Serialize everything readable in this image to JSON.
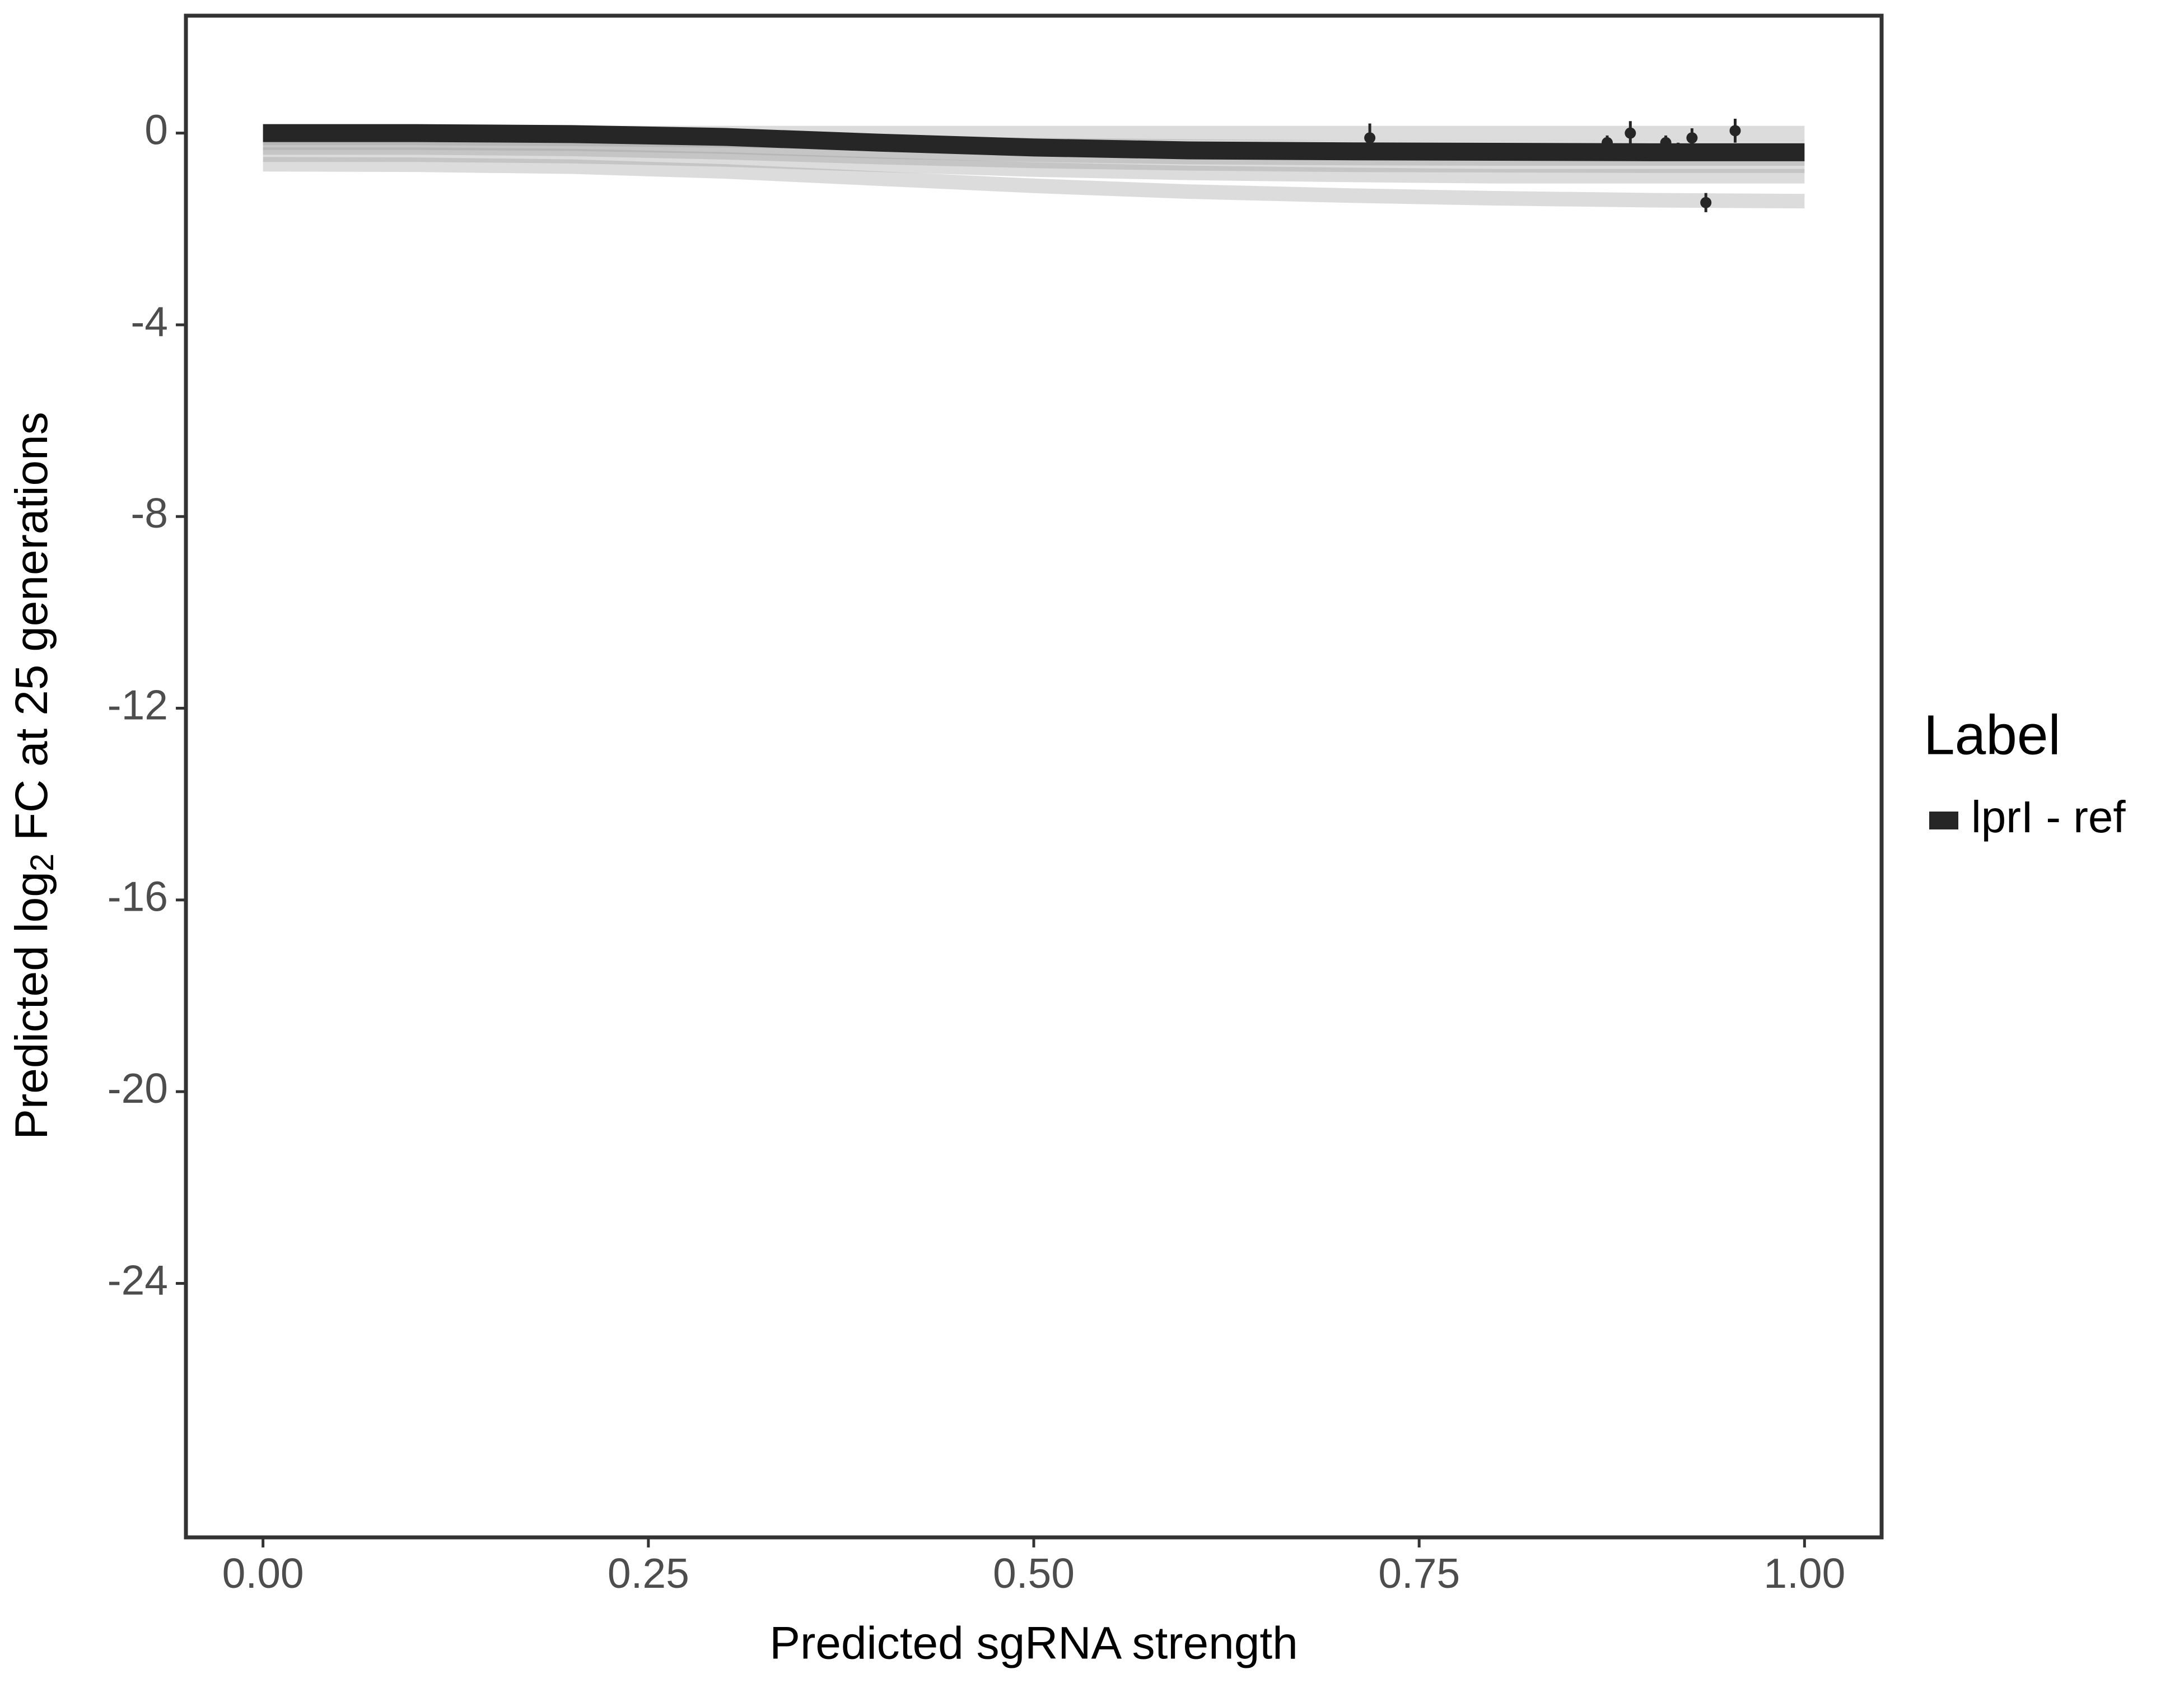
{
  "chart_data": {
    "type": "line",
    "x_label": "Predicted sgRNA strength",
    "y_label": {
      "prefix": "Predicted  log",
      "subscript": "2",
      "suffix": " FC at 25 generations"
    },
    "legend_title": "Label",
    "legend_position": "right",
    "x": [
      0,
      0.1,
      0.2,
      0.3,
      0.4,
      0.5,
      0.6,
      0.7,
      0.8,
      0.9,
      1.0
    ],
    "series": [
      {
        "name": "lprI - ref",
        "color": "#262626",
        "values": [
          0,
          0,
          -0.02,
          -0.08,
          -0.2,
          -0.3,
          -0.36,
          -0.38,
          -0.39,
          -0.4,
          -0.4
        ]
      }
    ],
    "draws": {
      "color": "#9a9a9a",
      "values": [
        [
          0,
          0,
          0,
          0,
          0,
          0,
          0,
          0,
          0,
          0,
          0
        ],
        [
          -0.1,
          -0.1,
          -0.12,
          -0.15,
          -0.2,
          -0.25,
          -0.28,
          -0.3,
          -0.3,
          -0.3,
          -0.3
        ],
        [
          -0.2,
          -0.2,
          -0.22,
          -0.28,
          -0.38,
          -0.45,
          -0.5,
          -0.52,
          -0.53,
          -0.53,
          -0.53
        ],
        [
          -0.3,
          -0.3,
          -0.33,
          -0.4,
          -0.5,
          -0.58,
          -0.63,
          -0.66,
          -0.67,
          -0.68,
          -0.68
        ],
        [
          -0.45,
          -0.45,
          -0.48,
          -0.55,
          -0.66,
          -0.76,
          -0.83,
          -0.87,
          -0.9,
          -0.9,
          -0.9
        ],
        [
          -0.65,
          -0.66,
          -0.7,
          -0.8,
          -0.95,
          -1.1,
          -1.22,
          -1.3,
          -1.36,
          -1.4,
          -1.42
        ]
      ]
    },
    "points": {
      "color": "#262626",
      "x": [
        0.718,
        0.872,
        0.887,
        0.91,
        0.918,
        0.927,
        0.936,
        0.955
      ],
      "y": [
        -0.1,
        -0.2,
        0.0,
        -0.2,
        -0.35,
        -0.1,
        -1.45,
        0.05
      ],
      "err": [
        0.3,
        0.15,
        0.25,
        0.15,
        0.15,
        0.2,
        0.2,
        0.25
      ]
    },
    "xlim": [
      -0.05,
      1.05
    ],
    "ylim": [
      -29.3,
      2.45
    ],
    "xticks": [
      {
        "value": 0,
        "label": "0.00"
      },
      {
        "value": 0.25,
        "label": "0.25"
      },
      {
        "value": 0.5,
        "label": "0.50"
      },
      {
        "value": 0.75,
        "label": "0.75"
      },
      {
        "value": 1,
        "label": "1.00"
      }
    ],
    "yticks": [
      0,
      -4,
      -8,
      -12,
      -16,
      -20,
      -24
    ],
    "grid": false
  }
}
